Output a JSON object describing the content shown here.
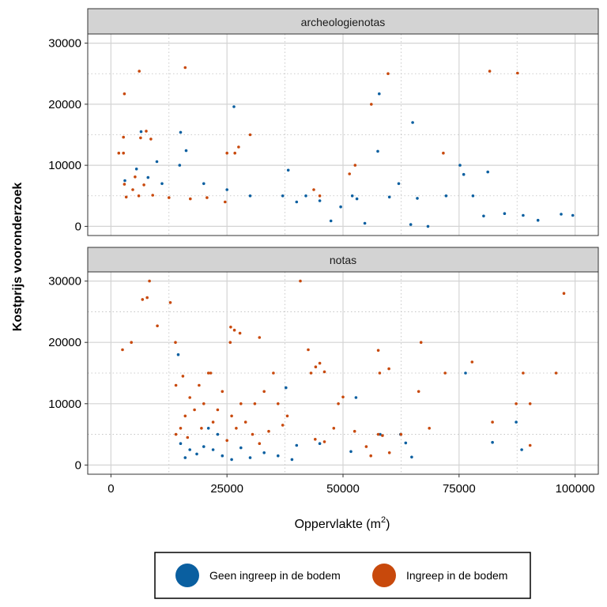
{
  "chart_data": {
    "type": "scatter",
    "xlabel_main": "Oppervlakte",
    "xlabel_unit_open": "(m",
    "xlabel_unit_exp": "2",
    "xlabel_unit_close": ")",
    "ylabel": "Kostprijs vooronderzoek",
    "xlim": [
      -5000,
      105000
    ],
    "ylim": [
      -1500,
      31500
    ],
    "x_ticks": [
      0,
      25000,
      50000,
      75000,
      100000
    ],
    "x_tick_labels": [
      "0",
      "25000",
      "50000",
      "75000",
      "100000"
    ],
    "y_ticks": [
      0,
      10000,
      20000,
      30000
    ],
    "y_tick_labels": [
      "0",
      "10000",
      "20000",
      "30000"
    ],
    "grid": true,
    "legend_position": "bottom",
    "legend": [
      {
        "label": "Geen ingreep in de bodem",
        "color": "#0a5fa0"
      },
      {
        "label": "Ingreep in de bodem",
        "color": "#c8490c"
      }
    ],
    "panels": [
      {
        "title": "archeologienotas",
        "series": [
          {
            "name": "Geen ingreep in de bodem",
            "color": "#0a5fa0",
            "points": [
              [
                26500,
                19600
              ],
              [
                57800,
                21700
              ],
              [
                65000,
                17000
              ],
              [
                57500,
                12300
              ],
              [
                16200,
                12400
              ],
              [
                6500,
                15500
              ],
              [
                15000,
                15400
              ],
              [
                9900,
                10600
              ],
              [
                14800,
                10000
              ],
              [
                38200,
                9200
              ],
              [
                62000,
                7000
              ],
              [
                75200,
                10000
              ],
              [
                76000,
                8500
              ],
              [
                81200,
                8900
              ],
              [
                78000,
                5000
              ],
              [
                72200,
                5000
              ],
              [
                52000,
                5000
              ],
              [
                42000,
                5000
              ],
              [
                37000,
                5000
              ],
              [
                30000,
                5000
              ],
              [
                5500,
                9400
              ],
              [
                8000,
                8000
              ],
              [
                3000,
                7500
              ],
              [
                11000,
                7000
              ],
              [
                20000,
                7000
              ],
              [
                25000,
                6000
              ],
              [
                40000,
                4000
              ],
              [
                45000,
                4200
              ],
              [
                49500,
                3200
              ],
              [
                53000,
                4500
              ],
              [
                60000,
                4800
              ],
              [
                66000,
                4600
              ],
              [
                92000,
                1000
              ],
              [
                97000,
                2000
              ],
              [
                99500,
                1800
              ],
              [
                88800,
                1800
              ],
              [
                84800,
                2100
              ],
              [
                80300,
                1700
              ],
              [
                68300,
                0
              ],
              [
                64600,
                300
              ],
              [
                54700,
                500
              ],
              [
                47400,
                900
              ]
            ]
          },
          {
            "name": "Ingreep in de bodem",
            "color": "#c8490c",
            "points": [
              [
                6100,
                25400
              ],
              [
                16000,
                26000
              ],
              [
                81600,
                25400
              ],
              [
                87600,
                25100
              ],
              [
                59700,
                25000
              ],
              [
                2900,
                21700
              ],
              [
                56100,
                20000
              ],
              [
                7600,
                15600
              ],
              [
                6400,
                14500
              ],
              [
                2700,
                14600
              ],
              [
                30000,
                15000
              ],
              [
                8600,
                14300
              ],
              [
                1700,
                12000
              ],
              [
                2700,
                12000
              ],
              [
                25000,
                12000
              ],
              [
                26700,
                12000
              ],
              [
                71600,
                12000
              ],
              [
                27500,
                13000
              ],
              [
                52600,
                10000
              ],
              [
                51400,
                8600
              ],
              [
                5200,
                8100
              ],
              [
                2900,
                6900
              ],
              [
                7100,
                6800
              ],
              [
                4700,
                6000
              ],
              [
                43700,
                6000
              ],
              [
                9000,
                5100
              ],
              [
                12500,
                4700
              ],
              [
                17100,
                4500
              ],
              [
                20700,
                4700
              ],
              [
                24600,
                4000
              ],
              [
                3300,
                4800
              ],
              [
                6000,
                5000
              ],
              [
                45000,
                5000
              ]
            ]
          }
        ]
      },
      {
        "title": "notas",
        "series": [
          {
            "name": "Geen ingreep in de bodem",
            "color": "#0a5fa0",
            "points": [
              [
                14500,
                18000
              ],
              [
                37700,
                12600
              ],
              [
                52800,
                11000
              ],
              [
                62400,
                5000
              ],
              [
                63500,
                3600
              ],
              [
                64800,
                1300
              ],
              [
                76400,
                15000
              ],
              [
                82200,
                3700
              ],
              [
                87300,
                7000
              ],
              [
                88500,
                2500
              ],
              [
                45000,
                3500
              ],
              [
                51700,
                2200
              ],
              [
                58000,
                5000
              ],
              [
                20000,
                3000
              ],
              [
                22000,
                2500
              ],
              [
                24000,
                1500
              ],
              [
                26000,
                900
              ],
              [
                28000,
                2800
              ],
              [
                30000,
                1200
              ],
              [
                33000,
                2000
              ],
              [
                36000,
                1500
              ],
              [
                40000,
                3200
              ],
              [
                39000,
                900
              ],
              [
                21000,
                6000
              ],
              [
                23000,
                5000
              ],
              [
                15000,
                3500
              ],
              [
                17000,
                2500
              ],
              [
                18500,
                1800
              ],
              [
                16000,
                1200
              ]
            ]
          },
          {
            "name": "Ingreep in de bodem",
            "color": "#c8490c",
            "points": [
              [
                8300,
                30000
              ],
              [
                40800,
                30000
              ],
              [
                97600,
                28000
              ],
              [
                6800,
                27000
              ],
              [
                7800,
                27300
              ],
              [
                12800,
                26500
              ],
              [
                25800,
                22500
              ],
              [
                26600,
                22000
              ],
              [
                10000,
                22700
              ],
              [
                27800,
                21500
              ],
              [
                25700,
                20000
              ],
              [
                32000,
                20800
              ],
              [
                13900,
                20000
              ],
              [
                4400,
                20000
              ],
              [
                2500,
                18800
              ],
              [
                42500,
                18800
              ],
              [
                57600,
                18700
              ],
              [
                66800,
                20000
              ],
              [
                59900,
                15700
              ],
              [
                57900,
                15000
              ],
              [
                77800,
                16800
              ],
              [
                44100,
                16000
              ],
              [
                45000,
                16600
              ],
              [
                43100,
                15000
              ],
              [
                46000,
                15200
              ],
              [
                72000,
                15000
              ],
              [
                88800,
                15000
              ],
              [
                95900,
                15000
              ],
              [
                66300,
                12000
              ],
              [
                50000,
                11100
              ],
              [
                49000,
                10000
              ],
              [
                87300,
                10000
              ],
              [
                90300,
                10000
              ],
              [
                68600,
                6000
              ],
              [
                82200,
                7000
              ],
              [
                90300,
                3200
              ],
              [
                55000,
                3000
              ],
              [
                56000,
                1500
              ],
              [
                57600,
                5000
              ],
              [
                58500,
                4800
              ],
              [
                62500,
                5000
              ],
              [
                60000,
                2000
              ],
              [
                52500,
                5500
              ],
              [
                46000,
                3800
              ],
              [
                44000,
                4200
              ],
              [
                48000,
                6000
              ],
              [
                35000,
                15000
              ],
              [
                33000,
                12000
              ],
              [
                31000,
                10000
              ],
              [
                36000,
                10000
              ],
              [
                38000,
                8000
              ],
              [
                29000,
                7000
              ],
              [
                30500,
                5000
              ],
              [
                34000,
                5500
              ],
              [
                32000,
                3500
              ],
              [
                37000,
                6500
              ],
              [
                24000,
                12000
              ],
              [
                23000,
                9000
              ],
              [
                22000,
                7000
              ],
              [
                26000,
                8000
              ],
              [
                27000,
                6000
              ],
              [
                25000,
                4000
              ],
              [
                28000,
                10000
              ],
              [
                21000,
                15000
              ],
              [
                19000,
                13000
              ],
              [
                17000,
                11000
              ],
              [
                18000,
                9000
              ],
              [
                20000,
                10000
              ],
              [
                19500,
                6000
              ],
              [
                16000,
                8000
              ],
              [
                15000,
                6000
              ],
              [
                14000,
                13000
              ],
              [
                15500,
                14500
              ],
              [
                21500,
                15000
              ],
              [
                14000,
                5000
              ],
              [
                16500,
                4500
              ]
            ]
          }
        ]
      }
    ]
  }
}
